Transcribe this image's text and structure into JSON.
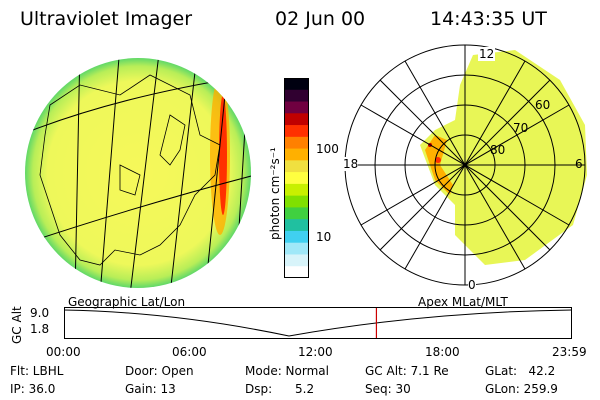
{
  "header": {
    "title": "Ultraviolet Imager",
    "date": "02 Jun 00",
    "time": "14:43:35 UT"
  },
  "colorbar": {
    "label": "photon cm⁻²s⁻¹",
    "ticks": [
      "100",
      "10"
    ],
    "colors": [
      "#000010",
      "#300030",
      "#700040",
      "#c00000",
      "#ff3000",
      "#ff8000",
      "#ffb000",
      "#f0e040",
      "#ffff40",
      "#c8f000",
      "#80e000",
      "#40d040",
      "#20c0a0",
      "#40d0f0",
      "#a0e8f8",
      "#d8f4fa",
      "#ffffff"
    ]
  },
  "polar": {
    "mlt_labels": {
      "top": "12",
      "left": "18",
      "right": "6",
      "bottom": "0"
    },
    "mlat_labels": [
      "60",
      "70",
      "80"
    ]
  },
  "timeline": {
    "left_label": "Geographic Lat/Lon",
    "right_label": "Apex MLat/MLT",
    "axis_label": "GC Alt",
    "y_ticks": [
      "9.0",
      "1.8"
    ],
    "x_ticks": [
      "00:00",
      "06:00",
      "12:00",
      "18:00",
      "23:59"
    ],
    "current_time_fraction": 0.615,
    "marker_color": "#cc0000"
  },
  "info": {
    "flt": "Flt: LBHL",
    "ip": "IP: 36.0",
    "door": "Door: Open",
    "gain": "Gain: 13",
    "mode": "Mode: Normal",
    "dsp": "Dsp:      5.2",
    "gcalt": "GC Alt: 7.1 Re",
    "seq": "Seq: 30",
    "glat": "GLat:   42.2",
    "glon": "GLon: 259.9"
  }
}
